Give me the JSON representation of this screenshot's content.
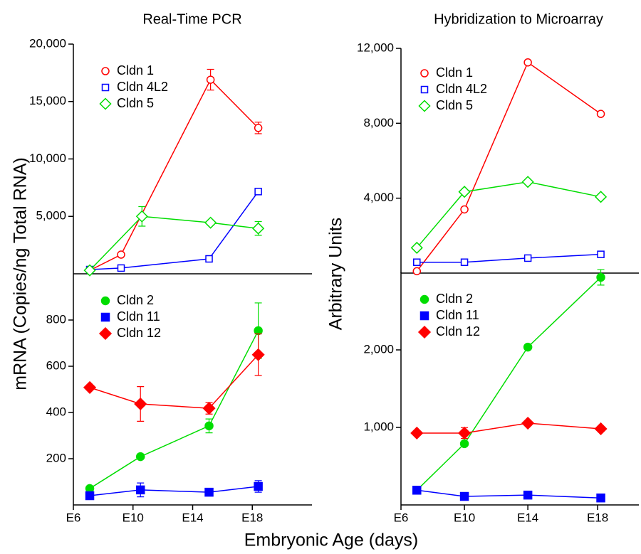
{
  "figure": {
    "xlabel": "Embryonic Age (days)"
  },
  "chart_data": [
    {
      "type": "line",
      "title": "Real-Time  PCR",
      "ylabel": "mRNA (Copies/ng Total RNA)",
      "legend": "upper left",
      "xlim": [
        6,
        22
      ],
      "ylim": [
        0,
        20000
      ],
      "yticks": [
        {
          "value": 5000,
          "label": "5,000"
        },
        {
          "value": 10000,
          "label": "10,000"
        },
        {
          "value": 15000,
          "label": "15,000"
        },
        {
          "value": 20000,
          "label": "20,000"
        }
      ],
      "series": [
        {
          "name": "Cldn 1",
          "color": "#ff0000",
          "marker": "circle",
          "filled": false,
          "x": [
            7.1,
            9.2,
            15.2,
            18.4
          ],
          "values": [
            300,
            1670,
            16900,
            12700
          ],
          "errors": [
            null,
            null,
            900,
            500
          ]
        },
        {
          "name": "Cldn 4L2",
          "color": "#0000ff",
          "marker": "square",
          "filled": false,
          "x": [
            7.1,
            9.2,
            15.1,
            18.4
          ],
          "values": [
            370,
            500,
            1300,
            7160
          ],
          "errors": [
            null,
            null,
            null,
            null
          ]
        },
        {
          "name": "Cldn 5",
          "color": "#00dd00",
          "marker": "diamond",
          "filled": false,
          "x": [
            7.1,
            10.6,
            15.2,
            18.4
          ],
          "values": [
            300,
            5000,
            4450,
            3950
          ],
          "errors": [
            null,
            850,
            null,
            600
          ]
        }
      ]
    },
    {
      "type": "line",
      "legend": "upper left",
      "xlim": [
        6,
        22
      ],
      "ylim": [
        0,
        1000
      ],
      "xticks": [
        {
          "value": 6,
          "label": "E6"
        },
        {
          "value": 10,
          "label": "E10"
        },
        {
          "value": 14,
          "label": "E14"
        },
        {
          "value": 18,
          "label": "E18"
        }
      ],
      "yticks": [
        200,
        400,
        600,
        800
      ],
      "series": [
        {
          "name": "Cldn 2",
          "color": "#00dd00",
          "marker": "circle",
          "filled": true,
          "x": [
            7.1,
            10.5,
            15.1,
            18.4
          ],
          "values": [
            71,
            209,
            342,
            754
          ],
          "errors": [
            null,
            null,
            30,
            120
          ]
        },
        {
          "name": "Cldn 11",
          "color": "#0000ff",
          "marker": "square",
          "filled": true,
          "x": [
            7.1,
            10.5,
            15.1,
            18.4
          ],
          "values": [
            40,
            65,
            55,
            80
          ],
          "errors": [
            null,
            30,
            null,
            25
          ]
        },
        {
          "name": "Cldn 12",
          "color": "#ff0000",
          "marker": "diamond",
          "filled": true,
          "x": [
            7.1,
            10.5,
            15.1,
            18.4
          ],
          "values": [
            508,
            437,
            418,
            650
          ],
          "errors": [
            null,
            75,
            25,
            90
          ]
        }
      ]
    },
    {
      "type": "line",
      "title": "Hybridization to Microarray",
      "ylabel": "Arbitrary Units",
      "legend": "upper left",
      "xlim": [
        6,
        21
      ],
      "ylim": [
        0,
        12000
      ],
      "yticks": [
        {
          "value": 4000,
          "label": "4,000"
        },
        {
          "value": 8000,
          "label": "8,000"
        },
        {
          "value": 12000,
          "label": "12,000"
        }
      ],
      "series": [
        {
          "name": "Cldn 1",
          "color": "#ff0000",
          "marker": "circle",
          "filled": false,
          "x": [
            7,
            10,
            14,
            18.6
          ],
          "values": [
            100,
            3400,
            11250,
            8500
          ],
          "errors": [
            null,
            null,
            null,
            null
          ]
        },
        {
          "name": "Cldn 4L2",
          "color": "#0000ff",
          "marker": "square",
          "filled": false,
          "x": [
            7,
            10,
            14,
            18.6
          ],
          "values": [
            580,
            580,
            800,
            1000
          ],
          "errors": [
            null,
            null,
            null,
            null
          ]
        },
        {
          "name": "Cldn 5",
          "color": "#00dd00",
          "marker": "diamond",
          "filled": false,
          "x": [
            7,
            10,
            14,
            18.6
          ],
          "values": [
            1350,
            4340,
            4870,
            4070
          ],
          "errors": [
            null,
            null,
            null,
            null
          ]
        }
      ]
    },
    {
      "type": "line",
      "legend": "upper left",
      "xlim": [
        6,
        21
      ],
      "ylim": [
        0,
        3000
      ],
      "xticks": [
        {
          "value": 6,
          "label": "E6"
        },
        {
          "value": 10,
          "label": "E10"
        },
        {
          "value": 14,
          "label": "E14"
        },
        {
          "value": 18.4,
          "label": "E18"
        }
      ],
      "yticks": [
        {
          "value": 1000,
          "label": "1,000"
        },
        {
          "value": 2000,
          "label": "2,000"
        }
      ],
      "series": [
        {
          "name": "Cldn 2",
          "color": "#00dd00",
          "marker": "circle",
          "filled": true,
          "x": [
            7,
            10,
            14,
            18.6
          ],
          "values": [
            190,
            790,
            2036,
            2936
          ],
          "errors": [
            null,
            null,
            null,
            100
          ]
        },
        {
          "name": "Cldn 11",
          "color": "#0000ff",
          "marker": "square",
          "filled": true,
          "x": [
            7,
            10,
            14,
            18.6
          ],
          "values": [
            190,
            110,
            127,
            90
          ],
          "errors": [
            null,
            null,
            null,
            null
          ]
        },
        {
          "name": "Cldn 12",
          "color": "#ff0000",
          "marker": "diamond",
          "filled": true,
          "x": [
            7,
            10,
            14,
            18.6
          ],
          "values": [
            927,
            927,
            1055,
            982
          ],
          "errors": [
            null,
            70,
            null,
            null
          ]
        }
      ]
    }
  ]
}
